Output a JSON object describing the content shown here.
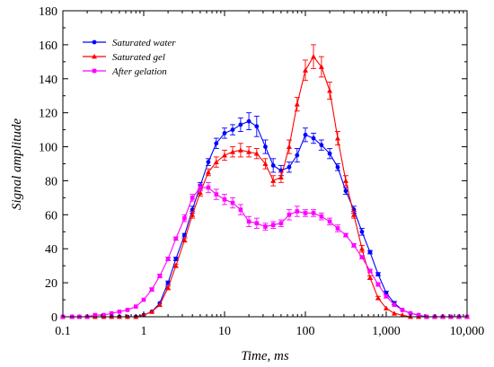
{
  "chart_data": {
    "type": "line",
    "xlabel": "Time, ms",
    "ylabel": "Signal amplitude",
    "xscale": "log",
    "xlim": [
      0.1,
      10000
    ],
    "ylim": [
      0,
      180
    ],
    "xticks": [
      0.1,
      1,
      10,
      100,
      1000,
      10000
    ],
    "xtick_labels": [
      "0.1",
      "1",
      "10",
      "100",
      "1,000",
      "10,000"
    ],
    "yticks": [
      0,
      20,
      40,
      60,
      80,
      100,
      120,
      140,
      160,
      180
    ],
    "ytick_labels": [
      "0",
      "20",
      "40",
      "60",
      "80",
      "100",
      "120",
      "140",
      "160",
      "180"
    ],
    "grid": false,
    "legend_position": "top-left",
    "series": [
      {
        "name": "Saturated water",
        "color": "#0000ff",
        "marker": "circle",
        "x": [
          0.1,
          0.13,
          0.16,
          0.2,
          0.25,
          0.32,
          0.4,
          0.5,
          0.63,
          0.8,
          1.0,
          1.26,
          1.58,
          2.0,
          2.5,
          3.2,
          4.0,
          5.0,
          6.3,
          7.9,
          10,
          12.6,
          15.8,
          20,
          25,
          32,
          40,
          50,
          63,
          79,
          100,
          126,
          158,
          200,
          251,
          316,
          398,
          501,
          631,
          794,
          1000,
          1259,
          1585,
          1995,
          2512,
          3162,
          3981,
          5012,
          6310,
          7943,
          10000
        ],
        "y": [
          0,
          0,
          0,
          0,
          0,
          0,
          0,
          0,
          0,
          0,
          1,
          3,
          8,
          20,
          34,
          48,
          63,
          77,
          91,
          102,
          108,
          110,
          113,
          115,
          112,
          100,
          89,
          86,
          88,
          95,
          107,
          105,
          101,
          96,
          88,
          74,
          63,
          50,
          38,
          25,
          14,
          8,
          4,
          2,
          1,
          0,
          0,
          0,
          0,
          0,
          0
        ],
        "err": [
          0,
          0,
          0,
          0,
          0,
          0,
          0,
          0,
          0,
          0,
          0,
          0,
          0,
          1,
          1,
          1,
          2,
          2,
          2,
          3,
          3,
          3,
          4,
          5,
          6,
          4,
          4,
          3,
          3,
          4,
          4,
          3,
          3,
          3,
          2,
          2,
          2,
          2,
          1,
          1,
          1,
          1,
          0,
          0,
          0,
          0,
          0,
          0,
          0,
          0,
          0
        ]
      },
      {
        "name": "Saturated gel",
        "color": "#ff0000",
        "marker": "triangle",
        "x": [
          0.1,
          0.13,
          0.16,
          0.2,
          0.25,
          0.32,
          0.4,
          0.5,
          0.63,
          0.8,
          1.0,
          1.26,
          1.58,
          2.0,
          2.5,
          3.2,
          4.0,
          5.0,
          6.3,
          7.9,
          10,
          12.6,
          15.8,
          20,
          25,
          32,
          40,
          50,
          63,
          79,
          100,
          126,
          158,
          200,
          251,
          316,
          398,
          501,
          631,
          794,
          1000,
          1259,
          1585,
          1995,
          2512,
          3162,
          3981,
          5012,
          6310,
          7943,
          10000
        ],
        "y": [
          0,
          0,
          0,
          0,
          0,
          0,
          0,
          0,
          0,
          0,
          1,
          3,
          7,
          17,
          30,
          45,
          60,
          73,
          85,
          91,
          95,
          97,
          98,
          97,
          96,
          90,
          80,
          82,
          100,
          125,
          145,
          153,
          147,
          133,
          105,
          80,
          60,
          40,
          23,
          11,
          5,
          2,
          1,
          0,
          0,
          0,
          0,
          0,
          0,
          0,
          0
        ],
        "err": [
          0,
          0,
          0,
          0,
          0,
          0,
          0,
          0,
          0,
          0,
          0,
          0,
          0,
          1,
          1,
          1,
          2,
          2,
          2,
          3,
          3,
          3,
          4,
          3,
          3,
          3,
          3,
          3,
          4,
          4,
          6,
          7,
          6,
          5,
          4,
          3,
          2,
          2,
          1,
          1,
          0,
          0,
          0,
          0,
          0,
          0,
          0,
          0,
          0,
          0,
          0
        ]
      },
      {
        "name": "After gelation",
        "color": "#ff00ff",
        "marker": "square",
        "x": [
          0.1,
          0.13,
          0.16,
          0.2,
          0.25,
          0.32,
          0.4,
          0.5,
          0.63,
          0.8,
          1.0,
          1.26,
          1.58,
          2.0,
          2.5,
          3.2,
          4.0,
          5.0,
          6.3,
          7.9,
          10,
          12.6,
          15.8,
          20,
          25,
          32,
          40,
          50,
          63,
          79,
          100,
          126,
          158,
          200,
          251,
          316,
          398,
          501,
          631,
          794,
          1000,
          1259,
          1585,
          1995,
          2512,
          3162,
          3981,
          5012,
          6310,
          7943,
          10000
        ],
        "y": [
          0,
          0,
          0,
          0,
          1,
          1,
          2,
          3,
          4,
          6,
          10,
          16,
          24,
          34,
          46,
          58,
          70,
          76,
          76,
          72,
          69,
          67,
          63,
          56,
          55,
          53,
          54,
          55,
          60,
          62,
          61,
          61,
          59,
          56,
          52,
          48,
          42,
          35,
          27,
          19,
          12,
          7,
          4,
          2,
          1,
          0,
          0,
          0,
          0,
          0,
          0
        ],
        "err": [
          0,
          0,
          0,
          0,
          0,
          0,
          0,
          0,
          0,
          0,
          0,
          1,
          1,
          1,
          1,
          2,
          2,
          2,
          3,
          3,
          3,
          3,
          3,
          3,
          3,
          2,
          2,
          2,
          3,
          3,
          2,
          2,
          2,
          2,
          2,
          1,
          1,
          1,
          1,
          1,
          1,
          0,
          0,
          0,
          0,
          0,
          0,
          0,
          0,
          0,
          0
        ]
      }
    ]
  }
}
